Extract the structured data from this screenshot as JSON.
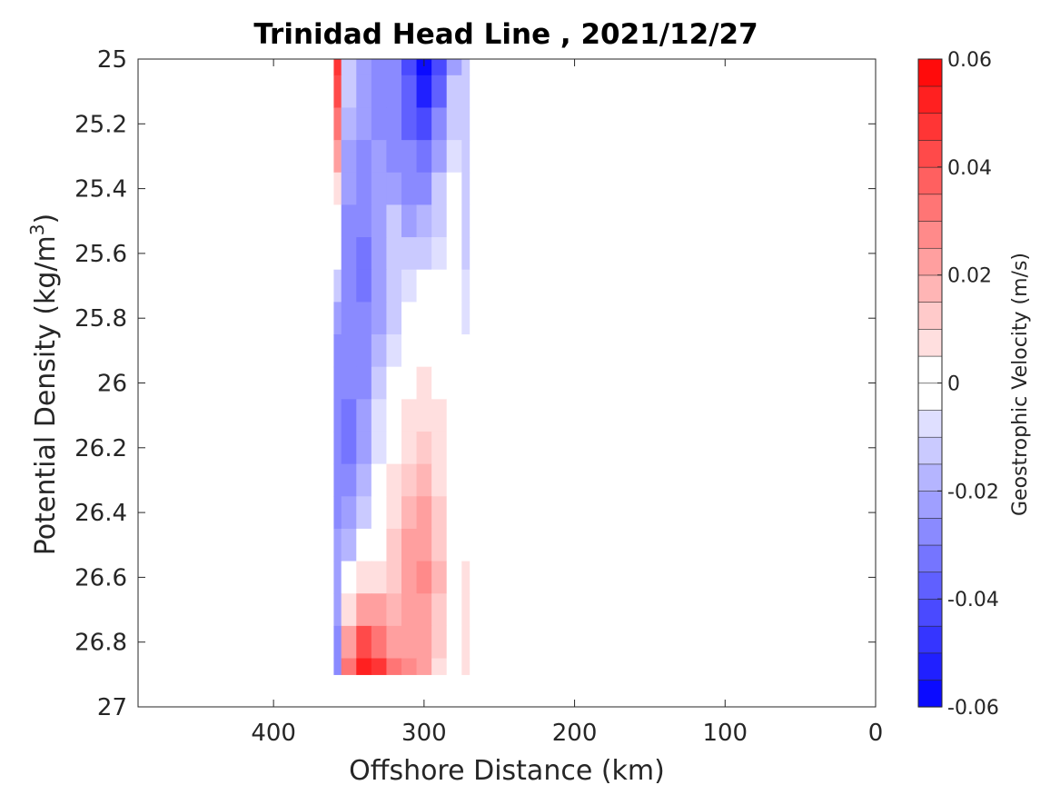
{
  "chart_data": {
    "type": "heatmap",
    "title": "Trinidad Head Line , 2021/12/27",
    "xlabel": "Offshore Distance (km)",
    "ylabel_main": "Potential Density (kg/m",
    "ylabel_sup": "3",
    "ylabel_close": ")",
    "xlim": [
      490,
      0
    ],
    "ylim": [
      25,
      27
    ],
    "x_direction": "reversed",
    "y_direction": "reversed (increasing downward)",
    "x_ticks": [
      400,
      300,
      200,
      100,
      0
    ],
    "x_tick_labels": [
      "400",
      "300",
      "200",
      "100",
      "0"
    ],
    "y_ticks": [
      25,
      25.2,
      25.4,
      25.6,
      25.8,
      26,
      26.2,
      26.4,
      26.6,
      26.8,
      27
    ],
    "y_tick_labels": [
      "25",
      "25.2",
      "25.4",
      "25.6",
      "25.8",
      "26",
      "26.2",
      "26.4",
      "26.6",
      "26.8",
      "27"
    ],
    "grid": false,
    "colorbar": {
      "label": "Geostrophic Velocity (m/s)",
      "limits": [
        -0.06,
        0.06
      ],
      "ticks": [
        0.06,
        0.04,
        0.02,
        0,
        -0.02,
        -0.04,
        -0.06
      ],
      "tick_labels": [
        "0.06",
        "0.04",
        "0.02",
        "0",
        "-0.02",
        "-0.04",
        "-0.06"
      ],
      "levels": 24,
      "colormap": "blue-white-red",
      "neg_color": "#0000ff",
      "zero_color": "#ffffff",
      "pos_color": "#ff0000"
    },
    "grid_x": [
      360,
      350,
      340,
      330,
      320,
      310,
      300,
      290,
      280,
      270
    ],
    "grid_y": [
      25.0,
      25.1,
      25.2,
      25.3,
      25.4,
      25.5,
      25.6,
      25.7,
      25.8,
      25.9,
      26.0,
      26.1,
      26.2,
      26.3,
      26.4,
      26.5,
      26.6,
      26.7,
      26.8,
      26.9
    ],
    "values": [
      [
        0.045,
        -0.015,
        -0.02,
        -0.025,
        -0.03,
        -0.04,
        -0.055,
        -0.04,
        -0.02,
        -0.012
      ],
      [
        0.04,
        -0.015,
        -0.02,
        -0.025,
        -0.03,
        -0.038,
        -0.05,
        -0.035,
        -0.015,
        -0.01
      ],
      [
        0.03,
        -0.018,
        -0.022,
        -0.025,
        -0.028,
        -0.035,
        -0.04,
        -0.028,
        -0.01,
        -0.01
      ],
      [
        0.02,
        -0.02,
        -0.025,
        -0.022,
        -0.025,
        -0.03,
        -0.032,
        -0.022,
        -0.008,
        -0.01
      ],
      [
        0.01,
        -0.022,
        -0.028,
        -0.02,
        -0.02,
        -0.025,
        -0.025,
        -0.015,
        -0.005,
        -0.01
      ],
      [
        0.004,
        -0.025,
        -0.03,
        -0.02,
        -0.015,
        -0.02,
        -0.018,
        -0.01,
        -0.005,
        -0.01
      ],
      [
        -0.005,
        -0.025,
        -0.032,
        -0.022,
        -0.012,
        -0.012,
        -0.012,
        -0.008,
        -0.005,
        -0.01
      ],
      [
        -0.012,
        -0.025,
        -0.032,
        -0.022,
        -0.012,
        -0.008,
        -0.005,
        -0.003,
        -0.002,
        -0.008
      ],
      [
        -0.02,
        -0.025,
        -0.03,
        -0.02,
        -0.01,
        -0.004,
        0.0,
        0.0,
        0.0,
        -0.006
      ],
      [
        -0.025,
        -0.028,
        -0.028,
        -0.016,
        -0.006,
        0.0,
        0.001,
        0.0,
        0.0,
        -0.005
      ],
      [
        -0.028,
        -0.03,
        -0.025,
        -0.012,
        -0.002,
        0.002,
        0.005,
        0.003,
        0.0,
        -0.005
      ],
      [
        -0.03,
        -0.032,
        -0.022,
        -0.008,
        0.0,
        0.006,
        0.01,
        0.006,
        0.001,
        -0.005
      ],
      [
        -0.03,
        -0.032,
        -0.02,
        -0.006,
        0.002,
        0.01,
        0.014,
        0.008,
        0.002,
        -0.004
      ],
      [
        -0.028,
        -0.028,
        -0.016,
        -0.004,
        0.005,
        0.014,
        0.018,
        0.01,
        0.002,
        -0.003
      ],
      [
        -0.026,
        -0.024,
        -0.012,
        0.0,
        0.008,
        0.018,
        0.022,
        0.012,
        0.003,
        -0.002
      ],
      [
        -0.022,
        -0.016,
        -0.005,
        0.004,
        0.012,
        0.022,
        0.024,
        0.014,
        0.003,
        0.0
      ],
      [
        -0.02,
        -0.004,
        0.006,
        0.01,
        0.014,
        0.024,
        0.026,
        0.016,
        0.004,
        0.006
      ],
      [
        -0.022,
        0.01,
        0.022,
        0.02,
        0.018,
        0.024,
        0.024,
        0.014,
        0.004,
        0.008
      ],
      [
        -0.025,
        0.02,
        0.04,
        0.032,
        0.024,
        0.024,
        0.022,
        0.012,
        0.004,
        0.01
      ],
      [
        -0.028,
        0.03,
        0.055,
        0.045,
        0.03,
        0.026,
        0.022,
        0.01,
        0.004,
        0.01
      ]
    ]
  }
}
